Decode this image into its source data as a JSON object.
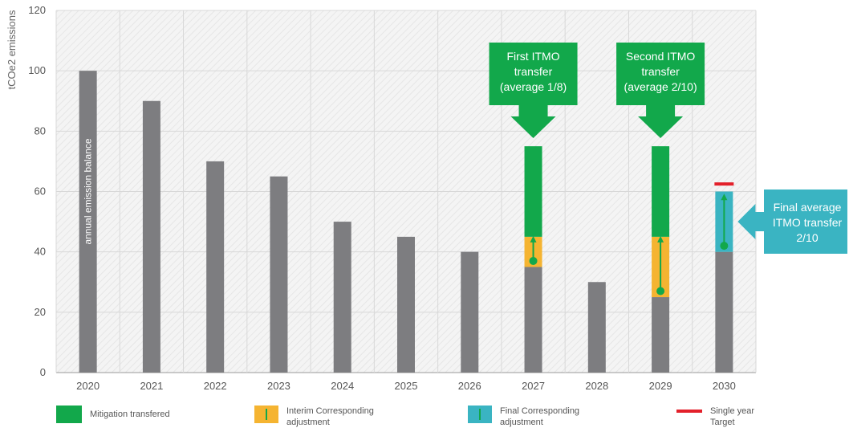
{
  "chart_data": {
    "type": "bar",
    "ylabel": "tCOe2 emissions",
    "ylim": [
      0,
      120
    ],
    "yticks": [
      0,
      20,
      40,
      60,
      80,
      100,
      120
    ],
    "categories": [
      "2020",
      "2021",
      "2022",
      "2023",
      "2024",
      "2025",
      "2026",
      "2027",
      "2028",
      "2029",
      "2030"
    ],
    "series": [
      {
        "name": "annual emission balance",
        "values": [
          100,
          90,
          70,
          65,
          50,
          45,
          40,
          35,
          30,
          25,
          40
        ]
      },
      {
        "name": "Interim Corresponding adjustment",
        "values": [
          0,
          0,
          0,
          0,
          0,
          0,
          0,
          10,
          0,
          20,
          0
        ]
      },
      {
        "name": "Mitigation transfered",
        "values": [
          0,
          0,
          0,
          0,
          0,
          0,
          0,
          30,
          0,
          30,
          0
        ]
      },
      {
        "name": "Final Corresponding adjustment",
        "values": [
          0,
          0,
          0,
          0,
          0,
          0,
          0,
          0,
          0,
          0,
          20
        ]
      }
    ],
    "arrows": [
      {
        "category": "2027",
        "from": 37,
        "to": 45
      },
      {
        "category": "2029",
        "from": 27,
        "to": 45
      },
      {
        "category": "2030",
        "from": 42,
        "to": 59
      }
    ],
    "target": {
      "category": "2030",
      "value": 62.5
    },
    "bar_label": "annual emission balance",
    "callouts": [
      {
        "category": "2027",
        "lines": [
          "First ITMO",
          "transfer",
          "(average 1/8)"
        ]
      },
      {
        "category": "2029",
        "lines": [
          "Second ITMO",
          "transfer",
          "(average 2/10)"
        ]
      }
    ],
    "side_callout": {
      "category": "2030",
      "lines": [
        "Final average",
        "ITMO transfer",
        "2/10"
      ]
    },
    "grid": true
  },
  "colors": {
    "balance": "#7d7d80",
    "mitigation": "#12a84b",
    "interim": "#f5b431",
    "final": "#3ab4c2",
    "target": "#e3202a",
    "arrow": "#12a84b"
  },
  "legend": {
    "mitigation": "Mitigation transfered",
    "interim": "Interim Corresponding adjustment",
    "final": "Final Corresponding adjustment",
    "target": "Single year Target"
  }
}
